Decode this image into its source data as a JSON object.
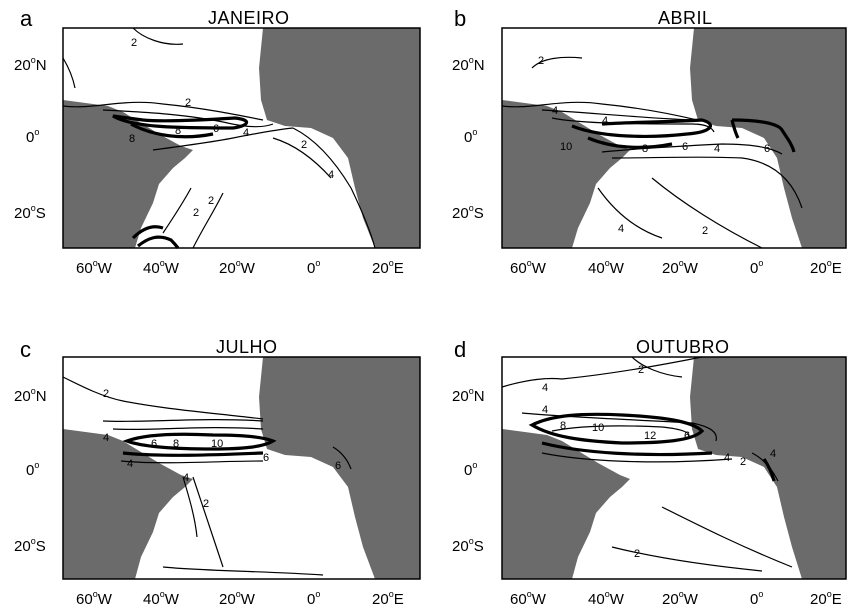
{
  "panels": [
    {
      "letter": "a",
      "title": "JANEIRO"
    },
    {
      "letter": "b",
      "title": "ABRIL"
    },
    {
      "letter": "c",
      "title": "JULHO"
    },
    {
      "letter": "d",
      "title": "OUTUBRO"
    }
  ],
  "lat_labels": [
    {
      "deg": "20",
      "hemi": "N"
    },
    {
      "deg": "0",
      "hemi": ""
    },
    {
      "deg": "20",
      "hemi": "S"
    }
  ],
  "lon_labels": [
    {
      "deg": "60",
      "hemi": "W"
    },
    {
      "deg": "40",
      "hemi": "W"
    },
    {
      "deg": "20",
      "hemi": "W"
    },
    {
      "deg": "0",
      "hemi": ""
    },
    {
      "deg": "20",
      "hemi": "E"
    }
  ],
  "degree_symbol": "o",
  "contour_labels": {
    "a": [
      "2",
      "2",
      "4",
      "6",
      "8",
      "8",
      "2",
      "4",
      "2",
      "2",
      "4",
      "2"
    ],
    "b": [
      "2",
      "4",
      "4",
      "10",
      "8",
      "6",
      "4",
      "6",
      "4",
      "2"
    ],
    "c": [
      "2",
      "4",
      "4",
      "6",
      "8",
      "10",
      "6",
      "2",
      "4",
      "6"
    ],
    "d": [
      "2",
      "4",
      "4",
      "8",
      "10",
      "12",
      "6",
      "4",
      "2",
      "4",
      "2"
    ]
  },
  "colors": {
    "land": "#6b6b6b",
    "ocean": "#ffffff",
    "contour": "#000000"
  }
}
